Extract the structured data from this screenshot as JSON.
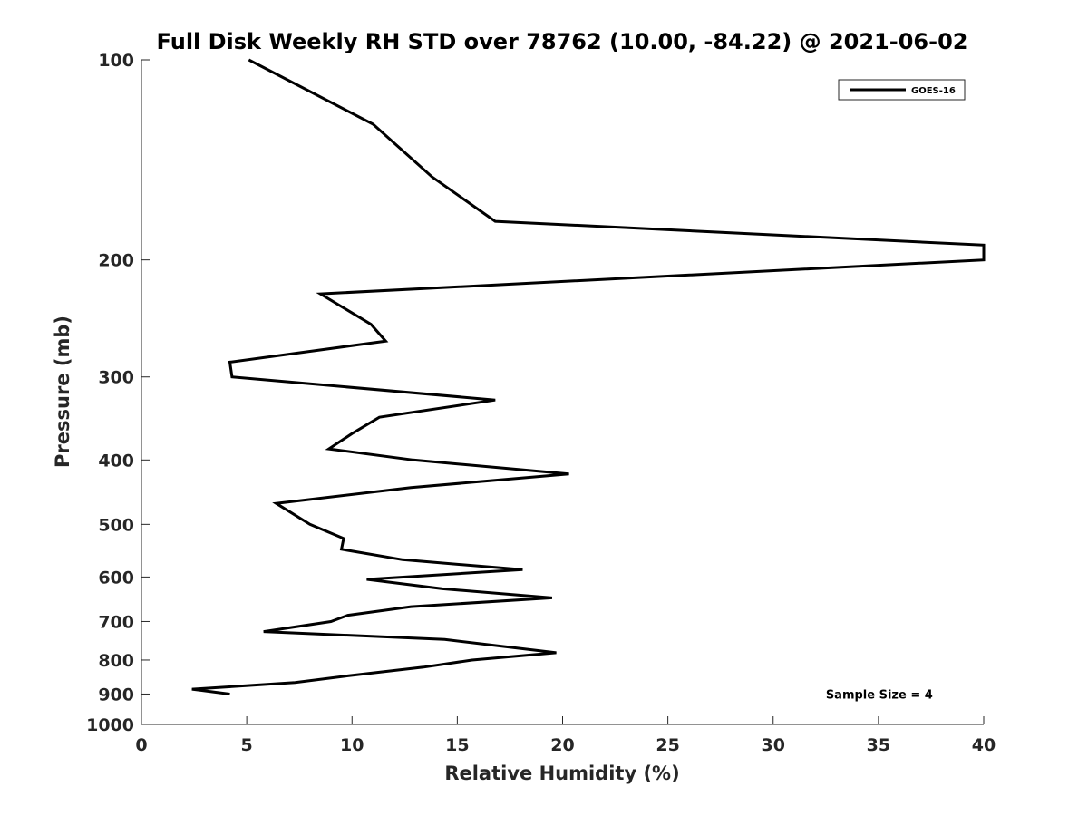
{
  "chart_data": {
    "type": "line",
    "title": "Full Disk Weekly RH STD over 78762 (10.00, -84.22) @ 2021-06-02",
    "xlabel": "Relative Humidity (%)",
    "ylabel": "Pressure (mb)",
    "xlim": [
      0,
      40
    ],
    "ylim": [
      100,
      1000
    ],
    "y_scale": "log",
    "y_direction": "reversed",
    "grid": false,
    "legend_position": "top-right",
    "x_ticks": [
      0,
      5,
      10,
      15,
      20,
      25,
      30,
      35,
      40
    ],
    "x_tick_labels": [
      "0",
      "5",
      "10",
      "15",
      "20",
      "25",
      "30",
      "35",
      "40"
    ],
    "y_ticks": [
      100,
      200,
      300,
      400,
      500,
      600,
      700,
      800,
      900,
      1000
    ],
    "y_tick_labels": [
      "100",
      "200",
      "300",
      "400",
      "500",
      "600",
      "700",
      "800",
      "900",
      "1000"
    ],
    "series": [
      {
        "name": "GOES-16",
        "color": "#000000",
        "points": [
          {
            "x": 5.1,
            "y": 100
          },
          {
            "x": 11.0,
            "y": 125
          },
          {
            "x": 13.8,
            "y": 150
          },
          {
            "x": 16.8,
            "y": 175
          },
          {
            "x": 40.0,
            "y": 190
          },
          {
            "x": 40.0,
            "y": 200
          },
          {
            "x": 8.5,
            "y": 225
          },
          {
            "x": 10.9,
            "y": 250
          },
          {
            "x": 11.6,
            "y": 265
          },
          {
            "x": 4.2,
            "y": 285
          },
          {
            "x": 4.3,
            "y": 300
          },
          {
            "x": 16.8,
            "y": 325
          },
          {
            "x": 11.3,
            "y": 345
          },
          {
            "x": 10.0,
            "y": 365
          },
          {
            "x": 8.9,
            "y": 385
          },
          {
            "x": 12.9,
            "y": 400
          },
          {
            "x": 20.3,
            "y": 420
          },
          {
            "x": 12.8,
            "y": 440
          },
          {
            "x": 6.4,
            "y": 465
          },
          {
            "x": 8.0,
            "y": 500
          },
          {
            "x": 9.6,
            "y": 525
          },
          {
            "x": 9.5,
            "y": 545
          },
          {
            "x": 12.4,
            "y": 565
          },
          {
            "x": 18.1,
            "y": 585
          },
          {
            "x": 10.7,
            "y": 605
          },
          {
            "x": 14.3,
            "y": 625
          },
          {
            "x": 19.5,
            "y": 645
          },
          {
            "x": 12.8,
            "y": 665
          },
          {
            "x": 9.8,
            "y": 685
          },
          {
            "x": 9.0,
            "y": 700
          },
          {
            "x": 5.8,
            "y": 725
          },
          {
            "x": 14.4,
            "y": 745
          },
          {
            "x": 19.7,
            "y": 780
          },
          {
            "x": 15.7,
            "y": 800
          },
          {
            "x": 13.4,
            "y": 820
          },
          {
            "x": 9.8,
            "y": 845
          },
          {
            "x": 7.3,
            "y": 865
          },
          {
            "x": 2.4,
            "y": 885
          },
          {
            "x": 4.2,
            "y": 900
          }
        ]
      }
    ],
    "annotations": [
      {
        "text": "Sample Size = 4",
        "x": 32.5,
        "y": 900
      }
    ]
  }
}
